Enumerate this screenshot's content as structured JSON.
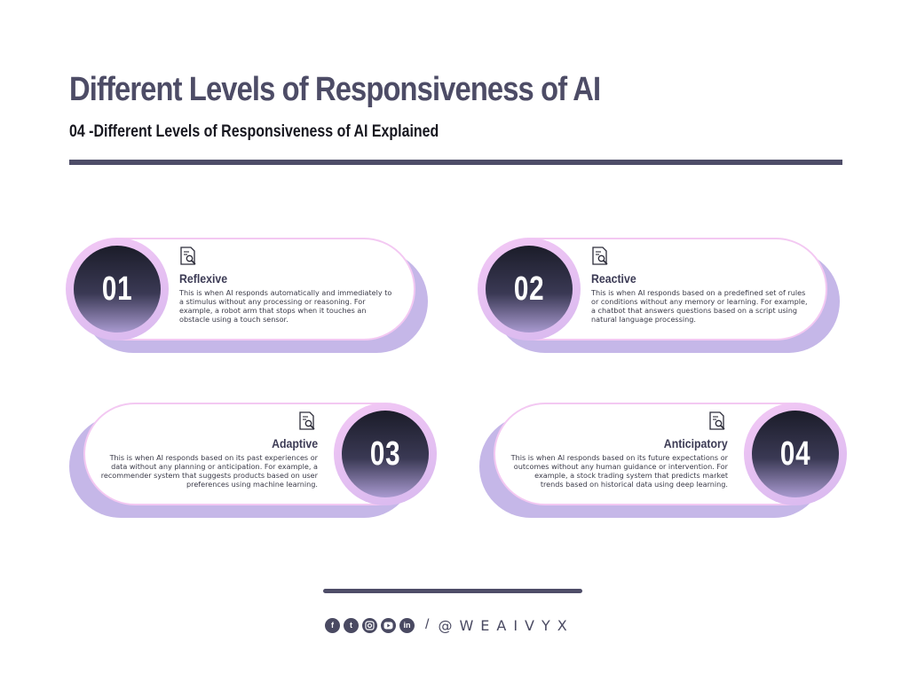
{
  "header": {
    "title": "Different Levels of Responsiveness of AI",
    "subtitle": "04 -Different Levels of Responsiveness of AI Explained"
  },
  "cards": [
    {
      "number": "01",
      "label": "Reflexive",
      "description": "This is when AI responds automatically and immediately to a stimulus without any processing or reasoning. For example, a robot arm that stops when it touches an obstacle using a touch sensor.",
      "icon": "document-search-icon"
    },
    {
      "number": "02",
      "label": "Reactive",
      "description": "This is when AI responds based on a predefined set of rules or conditions without any memory or learning. For example, a chatbot that answers questions based on a script using natural language processing.",
      "icon": "document-search-icon"
    },
    {
      "number": "03",
      "label": "Adaptive",
      "description": "This is when AI responds based on its past experiences or data without any planning or anticipation. For example, a recommender system that suggests products based on user preferences using machine learning.",
      "icon": "document-search-icon"
    },
    {
      "number": "04",
      "label": "Anticipatory",
      "description": "This is when AI responds based on its future expectations or outcomes without any human guidance or intervention. For example, a stock trading system that predicts market trends based on historical data using deep learning.",
      "icon": "document-search-icon"
    }
  ],
  "footer": {
    "social_icons": [
      "facebook-icon",
      "tumblr-icon",
      "instagram-icon",
      "youtube-icon",
      "linkedin-icon"
    ],
    "separator": "/",
    "handle": "@WEAIVYX"
  },
  "colors": {
    "title": "#4d4c66",
    "rule": "#4e4d68",
    "card_shadow": "#c5b7e8",
    "card_border": "#f3c8f2",
    "circle_dark": "#1b1c29",
    "circle_light": "#a99ad0"
  }
}
